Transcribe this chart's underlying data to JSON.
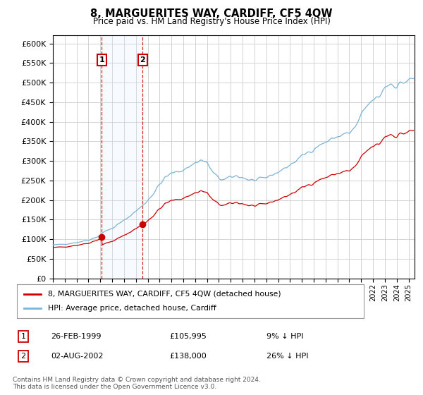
{
  "title": "8, MARGUERITES WAY, CARDIFF, CF5 4QW",
  "subtitle": "Price paid vs. HM Land Registry's House Price Index (HPI)",
  "legend_line1": "8, MARGUERITES WAY, CARDIFF, CF5 4QW (detached house)",
  "legend_line2": "HPI: Average price, detached house, Cardiff",
  "transaction1_label": "1",
  "transaction1_date": "26-FEB-1999",
  "transaction1_price": "£105,995",
  "transaction1_hpi": "9% ↓ HPI",
  "transaction1_year": 1999.12,
  "transaction1_value": 105995,
  "transaction2_label": "2",
  "transaction2_date": "02-AUG-2002",
  "transaction2_price": "£138,000",
  "transaction2_hpi": "26% ↓ HPI",
  "transaction2_year": 2002.58,
  "transaction2_value": 138000,
  "footnote": "Contains HM Land Registry data © Crown copyright and database right 2024.\nThis data is licensed under the Open Government Licence v3.0.",
  "hpi_color": "#7ab4d8",
  "price_color": "#cc0000",
  "marker_color": "#cc0000",
  "highlight_color": "#ddeeff",
  "dashed_color": "#cc0000",
  "ylim_min": 0,
  "ylim_max": 620000,
  "xlim_min": 1995.0,
  "xlim_max": 2025.5,
  "background_color": "#ffffff",
  "grid_color": "#cccccc"
}
